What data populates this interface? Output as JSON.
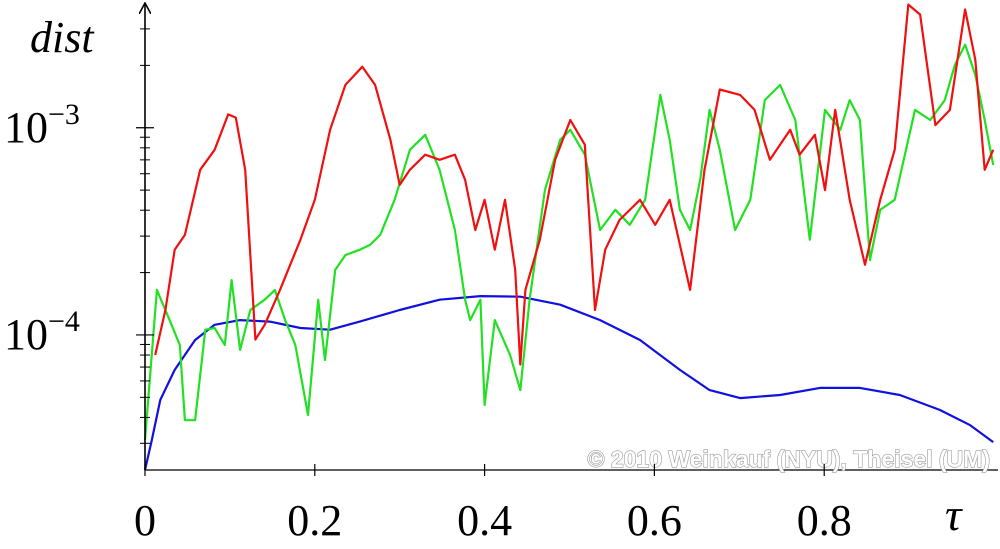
{
  "chart_data": {
    "type": "line",
    "y_label": "dist",
    "x_label": "τ",
    "annotation": "© 2010 Weinkauf (NYU), Theisel (UM)",
    "ylog": true,
    "xlim": [
      0,
      1
    ],
    "xticks": [
      0,
      0.2,
      0.4,
      0.6,
      0.8
    ],
    "ylim": [
      2.23e-05,
      0.004
    ],
    "yticks": [
      {
        "value": 0.0001,
        "label": "10−4"
      },
      {
        "value": 0.001,
        "label": "10−3"
      }
    ],
    "yminorticks": [
      3e-05,
      4e-05,
      5e-05,
      6e-05,
      7e-05,
      8e-05,
      9e-05,
      0.0002,
      0.0003,
      0.0004,
      0.0005,
      0.0006,
      0.0007,
      0.0008,
      0.0009,
      0.002,
      0.003
    ],
    "series": [
      {
        "color": "#1010e0",
        "x": [
          0,
          0.008,
          0.018,
          0.035,
          0.059,
          0.082,
          0.112,
          0.147,
          0.183,
          0.218,
          0.253,
          0.3,
          0.347,
          0.395,
          0.442,
          0.489,
          0.536,
          0.583,
          0.63,
          0.665,
          0.701,
          0.748,
          0.795,
          0.842,
          0.889,
          0.936,
          0.972,
          0.999
        ],
        "values": [
          2.23e-05,
          3.11e-05,
          4.86e-05,
          6.78e-05,
          9.46e-05,
          0.000112,
          0.000118,
          0.000116,
          0.000108,
          0.000106,
          0.000116,
          0.000132,
          0.000148,
          0.000154,
          0.000153,
          0.00014,
          0.000118,
          9.46e-05,
          6.78e-05,
          5.42e-05,
          4.96e-05,
          5.13e-05,
          5.55e-05,
          5.55e-05,
          5.13e-05,
          4.35e-05,
          3.67e-05,
          3.04e-05
        ]
      },
      {
        "color": "#22e022",
        "x": [
          0,
          0.014,
          0.029,
          0.041,
          0.047,
          0.059,
          0.071,
          0.082,
          0.094,
          0.102,
          0.112,
          0.124,
          0.141,
          0.153,
          0.165,
          0.177,
          0.192,
          0.204,
          0.212,
          0.224,
          0.236,
          0.253,
          0.265,
          0.277,
          0.294,
          0.312,
          0.33,
          0.347,
          0.365,
          0.377,
          0.383,
          0.395,
          0.4,
          0.412,
          0.43,
          0.442,
          0.453,
          0.471,
          0.489,
          0.501,
          0.518,
          0.536,
          0.554,
          0.571,
          0.589,
          0.607,
          0.618,
          0.63,
          0.642,
          0.654,
          0.665,
          0.677,
          0.695,
          0.713,
          0.73,
          0.748,
          0.766,
          0.783,
          0.801,
          0.819,
          0.83,
          0.842,
          0.854,
          0.866,
          0.883,
          0.907,
          0.925,
          0.942,
          0.954,
          0.966,
          0.978,
          0.989,
          0.999
        ],
        "values": [
          3.11e-05,
          0.000165,
          0.000118,
          8.95e-05,
          3.88e-05,
          3.88e-05,
          0.000106,
          0.000108,
          8.95e-05,
          0.000184,
          8.47e-05,
          0.000132,
          0.000148,
          0.000165,
          0.000118,
          8.95e-05,
          4.11e-05,
          0.000148,
          7.57e-05,
          0.000206,
          0.000243,
          0.000258,
          0.000272,
          0.000304,
          0.000449,
          0.000783,
          0.000925,
          0.000627,
          0.000321,
          0.000148,
          0.000118,
          0.000148,
          4.59e-05,
          0.000118,
          8e-05,
          5.42e-05,
          0.000148,
          0.0005,
          0.000875,
          0.000978,
          0.000741,
          0.000321,
          0.000402,
          0.00034,
          0.000449,
          0.00144,
          0.000875,
          0.000402,
          0.000321,
          0.000561,
          0.00122,
          0.000783,
          0.000321,
          0.000449,
          0.00136,
          0.00161,
          0.00109,
          0.000288,
          0.00122,
          0.000978,
          0.00136,
          0.00109,
          0.00023,
          0.000402,
          0.000449,
          0.00122,
          0.00109,
          0.00136,
          0.00201,
          0.00252,
          0.0018,
          0.00109,
          0.000662
        ]
      },
      {
        "color": "#f01010",
        "x": [
          0.012,
          0.024,
          0.035,
          0.047,
          0.065,
          0.082,
          0.098,
          0.107,
          0.118,
          0.13,
          0.141,
          0.159,
          0.171,
          0.183,
          0.2,
          0.218,
          0.236,
          0.256,
          0.271,
          0.289,
          0.3,
          0.312,
          0.33,
          0.347,
          0.365,
          0.377,
          0.389,
          0.4,
          0.412,
          0.424,
          0.436,
          0.442,
          0.448,
          0.465,
          0.483,
          0.501,
          0.518,
          0.53,
          0.542,
          0.559,
          0.583,
          0.601,
          0.618,
          0.642,
          0.659,
          0.677,
          0.701,
          0.718,
          0.736,
          0.76,
          0.771,
          0.789,
          0.801,
          0.813,
          0.83,
          0.848,
          0.866,
          0.883,
          0.899,
          0.913,
          0.931,
          0.948,
          0.966,
          0.978,
          0.989,
          0.999
        ],
        "values": [
          8e-05,
          0.000132,
          0.000258,
          0.000304,
          0.000627,
          0.000783,
          0.00116,
          0.00112,
          0.000627,
          9.5e-05,
          0.000112,
          0.000165,
          0.000218,
          0.000288,
          0.000449,
          0.000978,
          0.00161,
          0.00197,
          0.00161,
          0.000875,
          0.00053,
          0.000627,
          0.000741,
          0.0007,
          0.000741,
          0.000561,
          0.000321,
          0.000449,
          0.000258,
          0.000449,
          0.000206,
          7.2e-05,
          0.000165,
          0.000288,
          0.0007,
          0.00109,
          0.000828,
          0.000132,
          0.000258,
          0.000359,
          0.000449,
          0.00034,
          0.000449,
          0.000165,
          0.000627,
          0.00153,
          0.00144,
          0.00122,
          0.0007,
          0.000978,
          0.000741,
          0.000925,
          0.0005,
          0.00122,
          0.000449,
          0.000218,
          0.000449,
          0.000783,
          0.00393,
          0.00352,
          0.00103,
          0.00122,
          0.00372,
          0.00213,
          0.000627,
          0.000783
        ]
      }
    ]
  }
}
